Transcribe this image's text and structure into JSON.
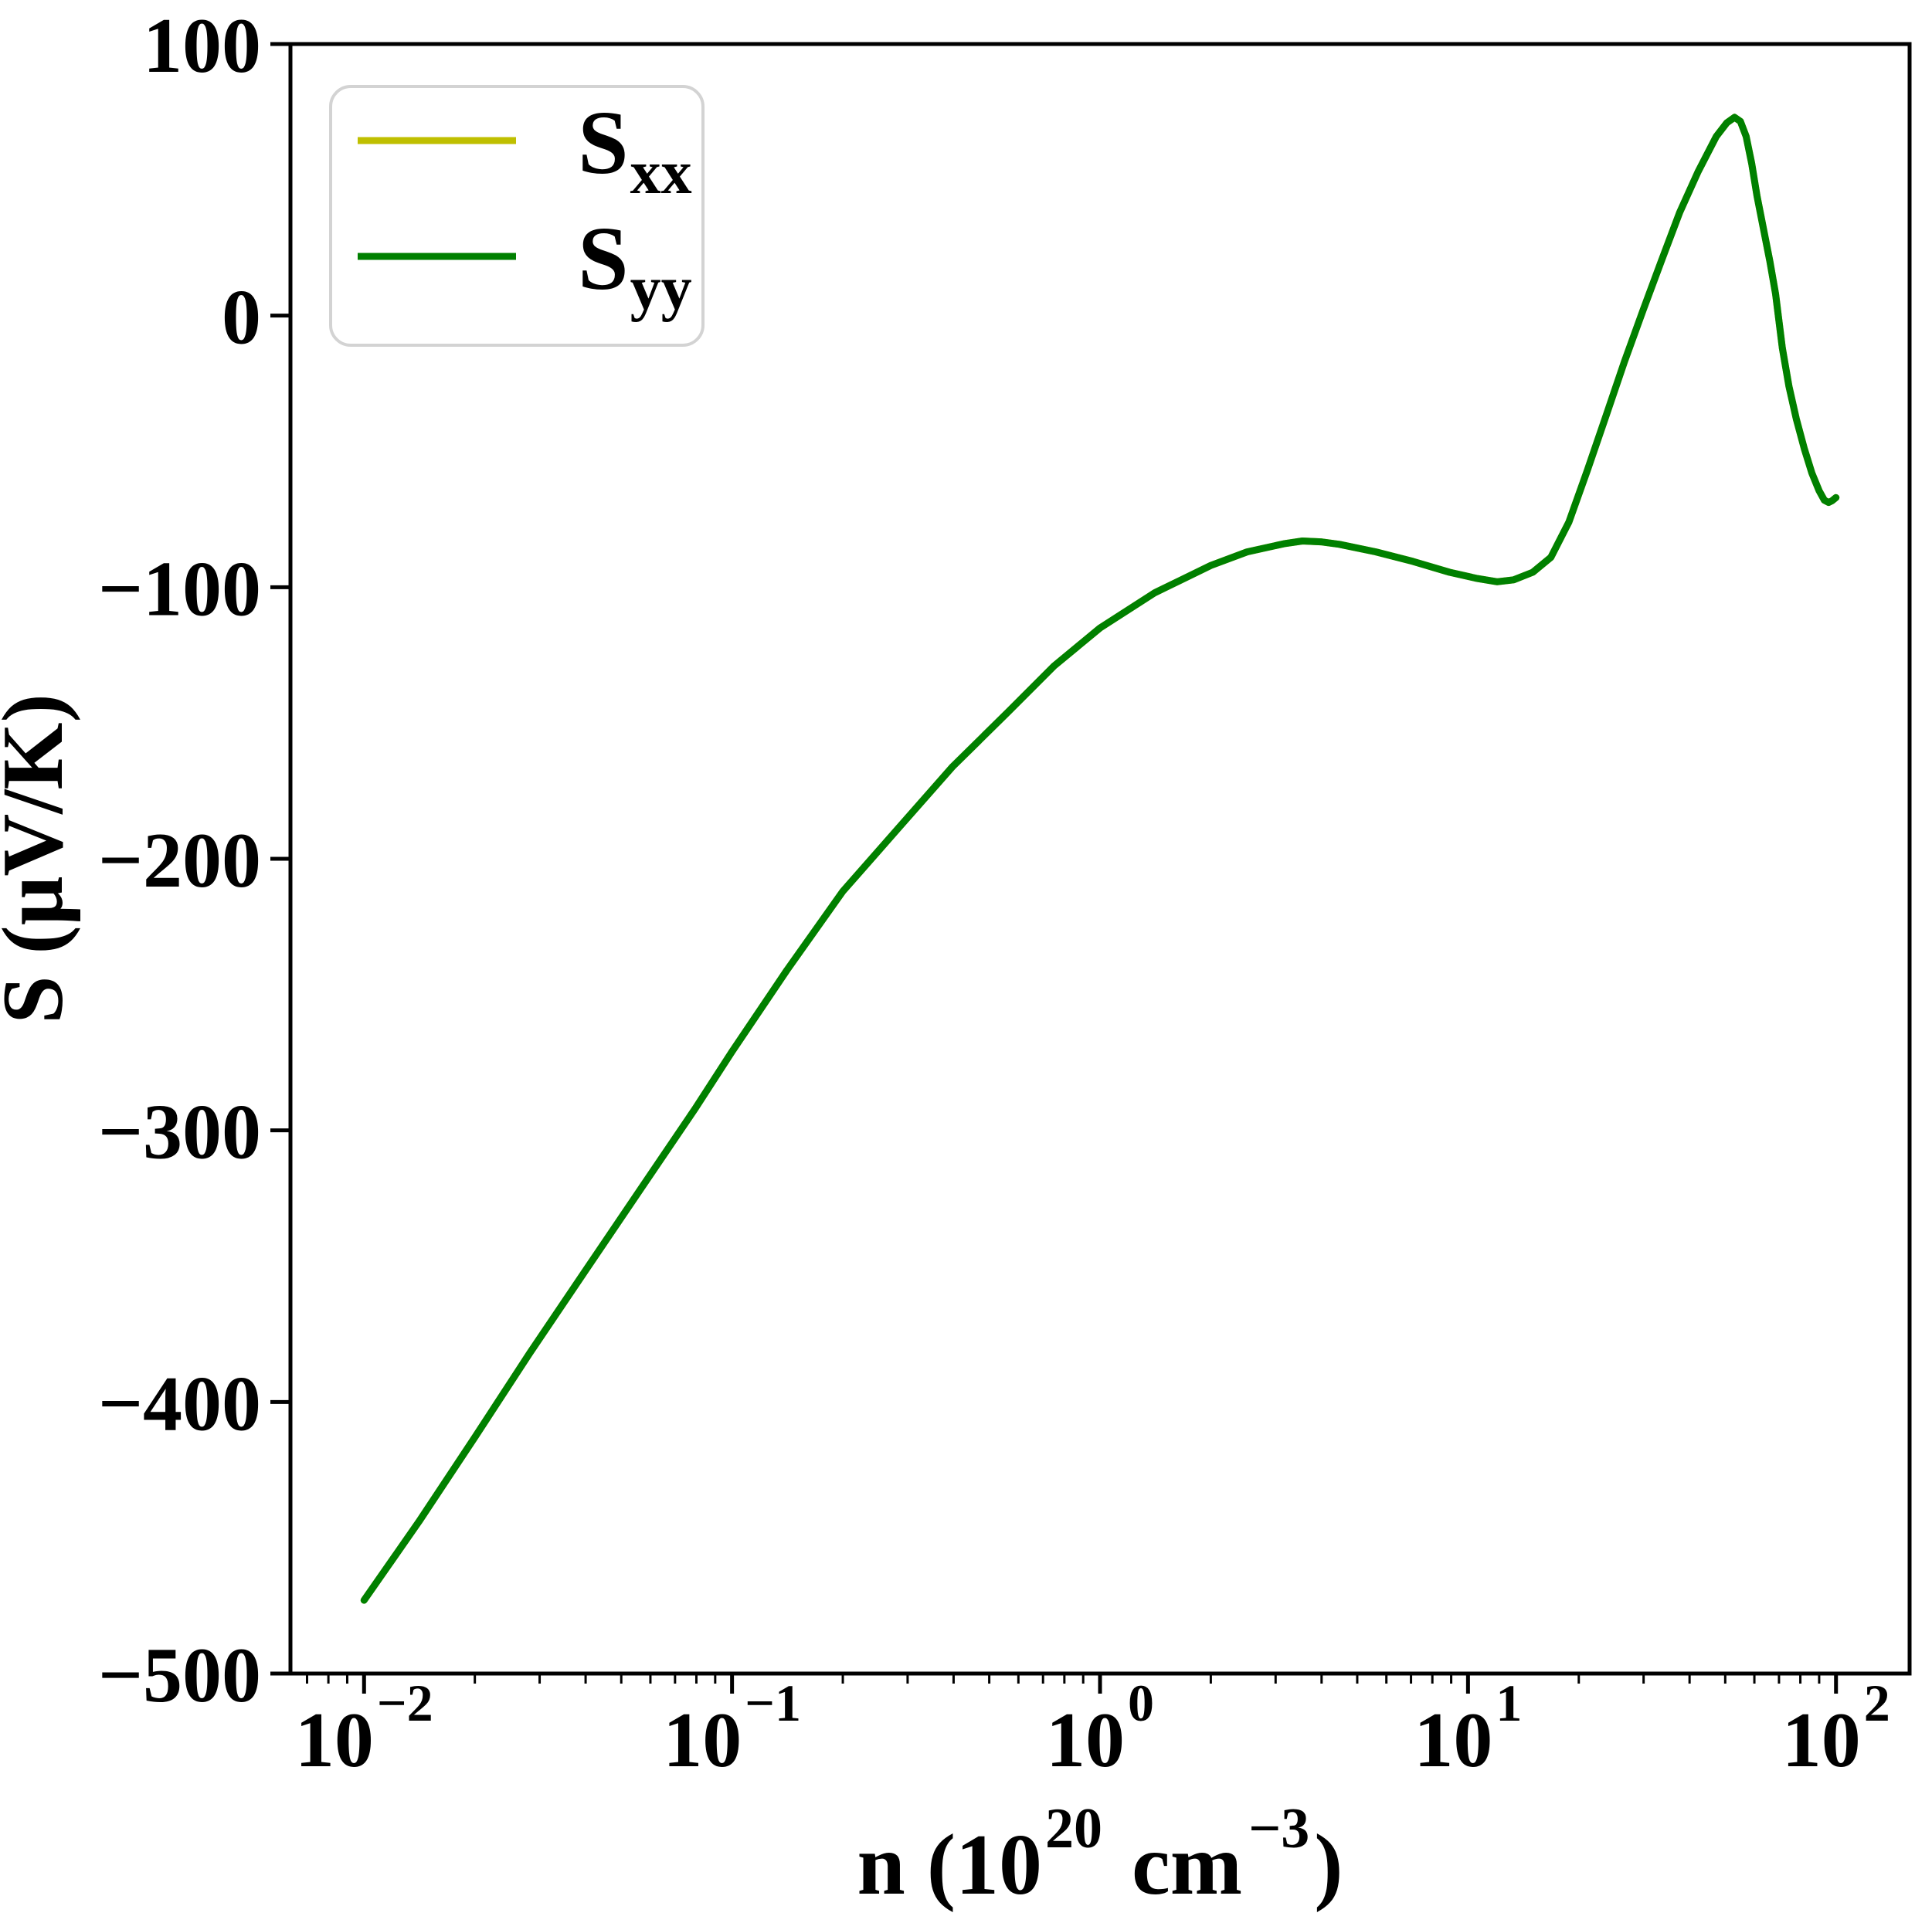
{
  "figure": {
    "background": "#ffffff"
  },
  "colors": {
    "sxx_line": "#bfbf00",
    "syy_line": "#008000",
    "axis": "#000000",
    "legend_border": "#d3d3d3",
    "legend_fill": "#ffffff"
  },
  "chart_data": {
    "type": "line",
    "title": "",
    "ylabel": "S (μV/K)",
    "xlabel_parts": {
      "p1": "n (10",
      "sup1": "20",
      "p2": " cm",
      "sup2": "−3",
      "p3": ")"
    },
    "x_scale": "log",
    "xlim_log": [
      -2.2,
      2.2
    ],
    "ylim": [
      -500,
      100
    ],
    "grid": "off",
    "x_major_ticks": [
      {
        "log_value": -2,
        "base": "10",
        "exp": "−2"
      },
      {
        "log_value": -1,
        "base": "10",
        "exp": "−1"
      },
      {
        "log_value": 0,
        "base": "10",
        "exp": "0"
      },
      {
        "log_value": 1,
        "base": "10",
        "exp": "1"
      },
      {
        "log_value": 2,
        "base": "10",
        "exp": "2"
      }
    ],
    "y_ticks": {
      "values": [
        100,
        0,
        -100,
        -200,
        -300,
        -400,
        -500
      ],
      "labels": [
        "100",
        "0",
        "−100",
        "−200",
        "−300",
        "−400",
        "−500"
      ]
    },
    "legend": {
      "position": "upper left",
      "entries": [
        {
          "label_base": "S",
          "label_sub": "xx",
          "color": "#bfbf00"
        },
        {
          "label_base": "S",
          "label_sub": "yy",
          "color": "#008000"
        }
      ]
    },
    "series": [
      {
        "name": "Sxx",
        "color": "#bfbf00",
        "points": [
          [
            0.01,
            -473
          ],
          [
            0.0141,
            -444
          ],
          [
            0.02,
            -413
          ],
          [
            0.0282,
            -382
          ],
          [
            0.0398,
            -352
          ],
          [
            0.0562,
            -322
          ],
          [
            0.0794,
            -292
          ],
          [
            0.1,
            -271
          ],
          [
            0.141,
            -241
          ],
          [
            0.2,
            -212
          ],
          [
            0.282,
            -189
          ],
          [
            0.398,
            -166
          ],
          [
            0.562,
            -146
          ],
          [
            0.75,
            -129
          ],
          [
            1.0,
            -115
          ],
          [
            1.41,
            -102
          ],
          [
            2.0,
            -92
          ],
          [
            2.51,
            -87
          ],
          [
            3.16,
            -84
          ],
          [
            3.55,
            -83
          ],
          [
            3.98,
            -83.3
          ],
          [
            4.47,
            -84.2
          ],
          [
            5.62,
            -87
          ],
          [
            7.08,
            -90.5
          ],
          [
            8.91,
            -94.5
          ],
          [
            10.6,
            -96.8
          ],
          [
            12.0,
            -98
          ],
          [
            13.3,
            -97.3
          ],
          [
            15.0,
            -94.5
          ],
          [
            16.8,
            -89
          ],
          [
            18.8,
            -76
          ],
          [
            21.1,
            -57
          ],
          [
            23.7,
            -37
          ],
          [
            26.6,
            -17
          ],
          [
            29.9,
            2
          ],
          [
            33.5,
            20
          ],
          [
            37.6,
            38
          ],
          [
            42.2,
            53
          ],
          [
            47.3,
            66
          ],
          [
            50.5,
            71
          ],
          [
            53.0,
            73
          ],
          [
            55.0,
            71.5
          ],
          [
            57.0,
            66
          ],
          [
            59.0,
            56
          ],
          [
            61.0,
            44
          ],
          [
            63.5,
            32
          ],
          [
            66.1,
            20
          ],
          [
            68.5,
            8
          ],
          [
            71.5,
            -12
          ],
          [
            74.5,
            -26
          ],
          [
            78.0,
            -38
          ],
          [
            82.0,
            -49
          ],
          [
            86.0,
            -58
          ],
          [
            90.0,
            -64.5
          ],
          [
            93.0,
            -68
          ],
          [
            95.5,
            -68.8
          ],
          [
            97.5,
            -68.2
          ],
          [
            100.0,
            -67
          ]
        ]
      },
      {
        "name": "Syy",
        "color": "#008000",
        "points": [
          [
            0.01,
            -473
          ],
          [
            0.0141,
            -444
          ],
          [
            0.02,
            -413
          ],
          [
            0.0282,
            -382
          ],
          [
            0.0398,
            -352
          ],
          [
            0.0562,
            -322
          ],
          [
            0.0794,
            -292
          ],
          [
            0.1,
            -271
          ],
          [
            0.141,
            -241
          ],
          [
            0.2,
            -212
          ],
          [
            0.282,
            -189
          ],
          [
            0.398,
            -166
          ],
          [
            0.562,
            -146
          ],
          [
            0.75,
            -129
          ],
          [
            1.0,
            -115
          ],
          [
            1.41,
            -102
          ],
          [
            2.0,
            -92
          ],
          [
            2.51,
            -87
          ],
          [
            3.16,
            -84
          ],
          [
            3.55,
            -83
          ],
          [
            3.98,
            -83.3
          ],
          [
            4.47,
            -84.2
          ],
          [
            5.62,
            -87
          ],
          [
            7.08,
            -90.5
          ],
          [
            8.91,
            -94.5
          ],
          [
            10.6,
            -96.8
          ],
          [
            12.0,
            -98
          ],
          [
            13.3,
            -97.3
          ],
          [
            15.0,
            -94.5
          ],
          [
            16.8,
            -89
          ],
          [
            18.8,
            -76
          ],
          [
            21.1,
            -57
          ],
          [
            23.7,
            -37
          ],
          [
            26.6,
            -17
          ],
          [
            29.9,
            2
          ],
          [
            33.5,
            20
          ],
          [
            37.6,
            38
          ],
          [
            42.2,
            53
          ],
          [
            47.3,
            66
          ],
          [
            50.5,
            71
          ],
          [
            53.0,
            73
          ],
          [
            55.0,
            71.5
          ],
          [
            57.0,
            66
          ],
          [
            59.0,
            56
          ],
          [
            61.0,
            44
          ],
          [
            63.5,
            32
          ],
          [
            66.1,
            20
          ],
          [
            68.5,
            8
          ],
          [
            71.5,
            -12
          ],
          [
            74.5,
            -26
          ],
          [
            78.0,
            -38
          ],
          [
            82.0,
            -49
          ],
          [
            86.0,
            -58
          ],
          [
            90.0,
            -64.5
          ],
          [
            93.0,
            -68
          ],
          [
            95.5,
            -68.8
          ],
          [
            97.5,
            -68.2
          ],
          [
            100.0,
            -67
          ]
        ]
      }
    ]
  }
}
